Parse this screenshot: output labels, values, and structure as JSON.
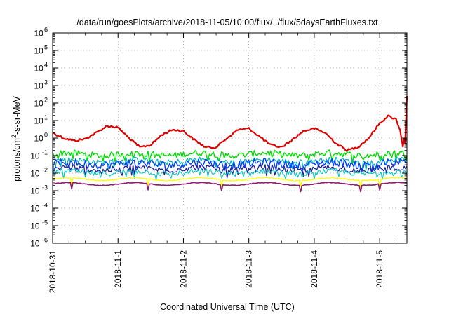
{
  "chart_data": {
    "type": "line",
    "title": "/data/run/goesPlots/archive/2018-11-05/10:00/flux/../flux/5daysEarthFluxes.txt",
    "xlabel": "Coordinated Universal Time (UTC)",
    "ylabel_parts": {
      "base": "protons/cm",
      "sup": "2",
      "rest": "-s-sr-MeV"
    },
    "y_scale": "log",
    "ylim_exp": [
      -6,
      6
    ],
    "y_ticks": [
      {
        "base": "10",
        "exp": "-6"
      },
      {
        "base": "10",
        "exp": "-5"
      },
      {
        "base": "10",
        "exp": "-4"
      },
      {
        "base": "10",
        "exp": "-3"
      },
      {
        "base": "10",
        "exp": "-2"
      },
      {
        "base": "10",
        "exp": "-1"
      },
      {
        "base": "10",
        "exp": "0"
      },
      {
        "base": "10",
        "exp": "1"
      },
      {
        "base": "10",
        "exp": "2"
      },
      {
        "base": "10",
        "exp": "3"
      },
      {
        "base": "10",
        "exp": "4"
      },
      {
        "base": "10",
        "exp": "5"
      },
      {
        "base": "10",
        "exp": "6"
      }
    ],
    "x_ticks": [
      "2018-10-31",
      "2018-11-1",
      "2018-11-2",
      "2018-11-3",
      "2018-11-4",
      "2018-11-5"
    ],
    "x_tick_dates": [
      "2018-10-31T00:00",
      "2018-11-01T00:00",
      "2018-11-02T00:00",
      "2018-11-03T00:00",
      "2018-11-04T00:00",
      "2018-11-05T00:00"
    ],
    "xlim": [
      "2018-10-31T00:00",
      "2018-11-05T10:00"
    ],
    "grid": true,
    "series": [
      {
        "color": "#e00000",
        "width": 2.2,
        "x": [
          "2018-10-31T00:00",
          "2018-10-31T04:00",
          "2018-10-31T08:00",
          "2018-10-31T12:00",
          "2018-10-31T16:00",
          "2018-10-31T20:00",
          "2018-11-01T00:00",
          "2018-11-01T04:00",
          "2018-11-01T08:00",
          "2018-11-01T12:00",
          "2018-11-01T16:00",
          "2018-11-01T20:00",
          "2018-11-02T00:00",
          "2018-11-02T04:00",
          "2018-11-02T08:00",
          "2018-11-02T12:00",
          "2018-11-02T16:00",
          "2018-11-02T20:00",
          "2018-11-03T00:00",
          "2018-11-03T04:00",
          "2018-11-03T08:00",
          "2018-11-03T12:00",
          "2018-11-03T16:00",
          "2018-11-03T20:00",
          "2018-11-04T00:00",
          "2018-11-04T04:00",
          "2018-11-04T08:00",
          "2018-11-04T12:00",
          "2018-11-04T16:00",
          "2018-11-04T20:00",
          "2018-11-05T00:00",
          "2018-11-05T03:00",
          "2018-11-05T06:00",
          "2018-11-05T07:30",
          "2018-11-05T08:30",
          "2018-11-05T09:00",
          "2018-11-05T09:20",
          "2018-11-05T10:00"
        ],
        "y": [
          2.0,
          1.0,
          0.7,
          0.9,
          2.0,
          5.0,
          4.0,
          1.0,
          0.3,
          0.4,
          1.5,
          3.0,
          2.5,
          0.8,
          0.3,
          0.3,
          1.0,
          3.0,
          3.5,
          1.2,
          0.4,
          0.3,
          0.8,
          2.5,
          3.5,
          2.0,
          0.5,
          0.2,
          0.3,
          1.0,
          7.0,
          18.0,
          12.0,
          3.0,
          0.3,
          1.0,
          0.5,
          250.0
        ]
      },
      {
        "color": "#00e000",
        "width": 1.4,
        "base": 0.12,
        "noise": 0.35
      },
      {
        "color": "#00b8b8",
        "width": 1.2,
        "base": 0.05,
        "noise": 0.3
      },
      {
        "color": "#0040ff",
        "width": 1.4,
        "base": 0.035,
        "noise": 0.45
      },
      {
        "color": "#2020a0",
        "width": 1.3,
        "base": 0.018,
        "noise": 0.35
      },
      {
        "color": "#00c8c8",
        "width": 1.1,
        "base": 0.011,
        "noise": 0.3
      },
      {
        "color": "#ffff00",
        "width": 1.4,
        "base": 0.0045,
        "noise": 0.05
      },
      {
        "color": "#8b1a70",
        "width": 1.6,
        "base": 0.0024,
        "noise": 0.04
      }
    ]
  }
}
